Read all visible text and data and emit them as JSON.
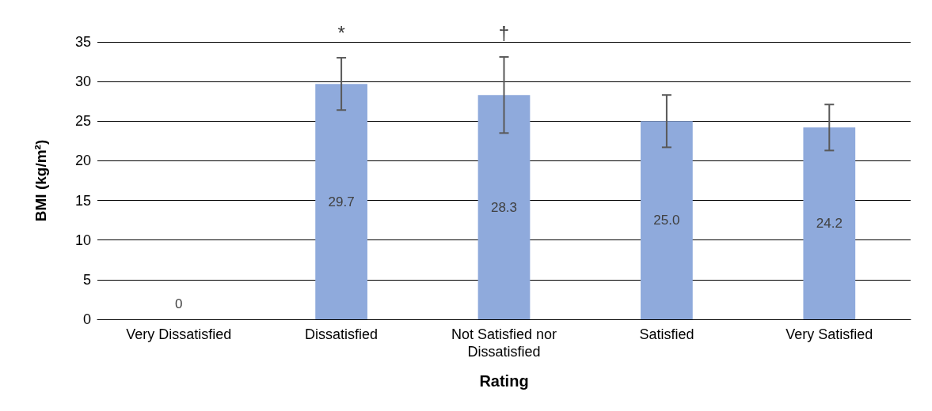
{
  "chart_data": {
    "type": "bar",
    "xlabel": "Rating",
    "ylabel": "BMI (kg/m²)",
    "categories": [
      "Very Dissatisfied",
      "Dissatisfied",
      "Not Satisfied nor Dissatisfied",
      "Satisfied",
      "Very Satisfied"
    ],
    "values": [
      0,
      29.7,
      28.3,
      25.0,
      24.2
    ],
    "value_labels": [
      "0",
      "29.7",
      "28.3",
      "25.0",
      "24.2"
    ],
    "errors": [
      null,
      3.3,
      4.8,
      3.3,
      2.9
    ],
    "color": "#8faadc",
    "ylim": [
      0,
      35
    ],
    "yticks": [
      0,
      5,
      10,
      15,
      20,
      25,
      30,
      35
    ],
    "grid": "y",
    "annotations": [
      "*",
      "†"
    ]
  }
}
